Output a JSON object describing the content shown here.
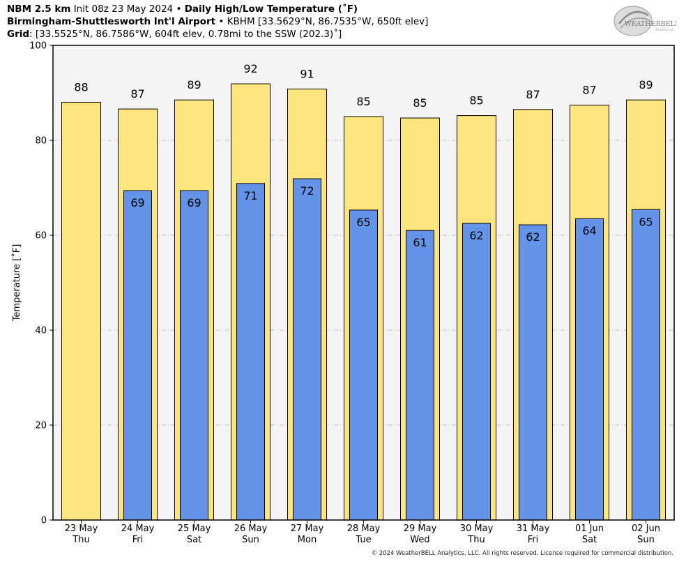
{
  "header": {
    "model": "NBM 2.5 km",
    "init": "Init 08z 23 May 2024",
    "sep": "•",
    "product": "Daily High/Low Temperature (˚F)",
    "station_name": "Birmingham-Shuttlesworth Int'l Airport",
    "station_info": "KBHM [33.5629°N, 86.7535°W, 650ft elev]",
    "grid_label": "Grid",
    "grid_info": ": [33.5525°N, 86.7586°W, 604ft elev, 0.78mi to the SSW (202.3)˚]"
  },
  "logo": {
    "text": "WEATHERBELL",
    "subtext": "Analytics LLC"
  },
  "copyright": "© 2024 WeatherBELL Analytics, LLC. All rights reserved. License required for commercial distribution.",
  "colors": {
    "high": "#fde47c",
    "low": "#6493ea",
    "plot_bg": "#f4f4f4",
    "grid": "#bbbbbb"
  },
  "chart_data": {
    "type": "bar",
    "ylabel": "Temperature [˚F]",
    "ylim": [
      0,
      100
    ],
    "yticks": [
      0,
      20,
      40,
      60,
      80,
      100
    ],
    "grid": true,
    "categories": [
      [
        "23 May",
        "Thu"
      ],
      [
        "24 May",
        "Fri"
      ],
      [
        "25 May",
        "Sat"
      ],
      [
        "26 May",
        "Sun"
      ],
      [
        "27 May",
        "Mon"
      ],
      [
        "28 May",
        "Tue"
      ],
      [
        "29 May",
        "Wed"
      ],
      [
        "30 May",
        "Thu"
      ],
      [
        "31 May",
        "Fri"
      ],
      [
        "01 Jun",
        "Sat"
      ],
      [
        "02 Jun",
        "Sun"
      ]
    ],
    "series": [
      {
        "key": "high",
        "values": [
          88,
          86.6,
          88.5,
          91.9,
          90.8,
          85.0,
          84.7,
          85.2,
          86.5,
          87.4,
          88.5
        ],
        "labels": [
          "88",
          "87",
          "89",
          "92",
          "91",
          "85",
          "85",
          "85",
          "87",
          "87",
          "89"
        ]
      },
      {
        "key": "low",
        "values": [
          null,
          69.4,
          69.4,
          70.9,
          71.9,
          65.3,
          61.0,
          62.5,
          62.2,
          63.5,
          65.4
        ],
        "labels": [
          "",
          "69",
          "69",
          "71",
          "72",
          "65",
          "61",
          "62",
          "62",
          "64",
          "65"
        ]
      }
    ]
  }
}
